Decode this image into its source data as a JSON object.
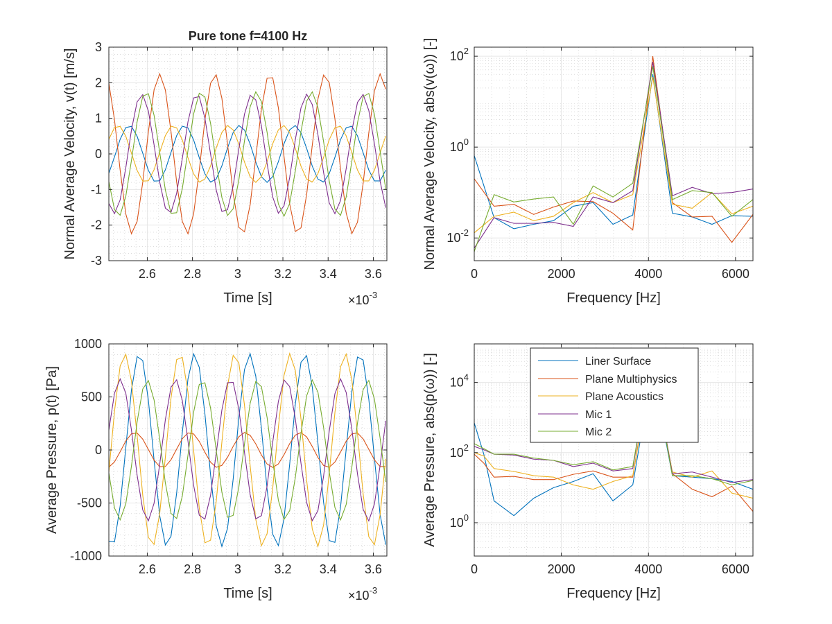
{
  "colors": {
    "series": [
      "#0072BD",
      "#D95319",
      "#EDB120",
      "#7E2F8E",
      "#77AC30"
    ],
    "axis": "#262626",
    "grid": "#e6e6e6",
    "minor_grid": "#c8c8c8"
  },
  "legend": {
    "entries": [
      "Liner Surface",
      "Plane Multiphysics",
      "Plane Acoustics",
      "Mic 1",
      "Mic 2"
    ]
  },
  "chart_data": [
    {
      "id": "velocity-time",
      "type": "line",
      "title": "Pure tone f=4100 Hz",
      "xlabel": "Time [s]",
      "ylabel": "Normal Average Velocity, v(t) [m/s]",
      "x_exponent_label": "×10",
      "x_exponent": "-3",
      "xlim": [
        2.43,
        3.66
      ],
      "ylim": [
        -3,
        3
      ],
      "xscale": "linear",
      "yscale": "linear",
      "xticks": [
        2.6,
        2.8,
        3.0,
        3.2,
        3.4,
        3.6
      ],
      "xtick_labels": [
        "2.6",
        "2.8",
        "3",
        "3.2",
        "3.4",
        "3.6"
      ],
      "yticks": [
        -3,
        -2,
        -1,
        0,
        1,
        2,
        3
      ],
      "ytick_labels": [
        "-3",
        "-2",
        "-1",
        "0",
        "1",
        "2",
        "3"
      ],
      "grid": true,
      "minor_grid": true,
      "signal": {
        "frequency_kHz": 4.1,
        "dt_ms": 0.025,
        "t_start_ms": 2.43,
        "t_end_ms": 3.66,
        "series": [
          {
            "name": "Liner Surface",
            "amplitude": 0.8,
            "peak_at_ms": 2.52
          },
          {
            "name": "Plane Multiphysics",
            "amplitude": 2.25,
            "peak_at_ms": 2.655
          },
          {
            "name": "Plane Acoustics",
            "amplitude": 0.8,
            "peak_at_ms": 2.47
          },
          {
            "name": "Mic 1",
            "amplitude": 1.68,
            "peak_at_ms": 2.575
          },
          {
            "name": "Mic 2",
            "amplitude": 1.75,
            "peak_at_ms": 2.595
          }
        ]
      }
    },
    {
      "id": "velocity-spectrum",
      "type": "line",
      "title": "",
      "xlabel": "Frequency [Hz]",
      "ylabel": "Normal Average Velocity, abs(v(ω)) [-]",
      "xlim": [
        0,
        6400
      ],
      "ylim_log10": [
        -2.5,
        2.2
      ],
      "xscale": "linear",
      "yscale": "log",
      "xticks": [
        0,
        2000,
        4000,
        6000
      ],
      "xtick_labels": [
        "0",
        "2000",
        "4000",
        "6000"
      ],
      "yticks_log10": [
        -2,
        0,
        2
      ],
      "ytick_bases": [
        "10",
        "10",
        "10"
      ],
      "ytick_exponents": [
        "-2",
        "0",
        "2"
      ],
      "grid": true,
      "minor_grid": true,
      "x": [
        0,
        455,
        910,
        1365,
        1820,
        2275,
        2730,
        3185,
        3640,
        4100,
        4550,
        5005,
        5460,
        5915,
        6400
      ],
      "series": [
        {
          "name": "Liner Surface",
          "values": [
            0.65,
            0.028,
            0.016,
            0.02,
            0.024,
            0.05,
            0.06,
            0.02,
            0.032,
            40,
            0.035,
            0.029,
            0.02,
            0.031,
            0.03
          ]
        },
        {
          "name": "Plane Multiphysics",
          "values": [
            0.2,
            0.05,
            0.055,
            0.033,
            0.048,
            0.065,
            0.063,
            0.035,
            0.015,
            100,
            0.06,
            0.029,
            0.03,
            0.008,
            0.033
          ]
        },
        {
          "name": "Plane Acoustics",
          "values": [
            0.013,
            0.03,
            0.037,
            0.024,
            0.03,
            0.06,
            0.1,
            0.06,
            0.09,
            35,
            0.055,
            0.045,
            0.1,
            0.034,
            0.05
          ]
        },
        {
          "name": "Mic 1",
          "values": [
            0.006,
            0.028,
            0.021,
            0.021,
            0.022,
            0.018,
            0.08,
            0.06,
            0.11,
            75,
            0.085,
            0.13,
            0.095,
            0.1,
            0.12
          ]
        },
        {
          "name": "Mic 2",
          "values": [
            0.005,
            0.09,
            0.062,
            0.072,
            0.08,
            0.02,
            0.14,
            0.08,
            0.16,
            60,
            0.07,
            0.11,
            0.1,
            0.03,
            0.07
          ]
        }
      ]
    },
    {
      "id": "pressure-time",
      "type": "line",
      "title": "",
      "xlabel": "Time [s]",
      "ylabel": "Average Pressure, p(t) [Pa]",
      "x_exponent_label": "×10",
      "x_exponent": "-3",
      "xlim": [
        2.43,
        3.66
      ],
      "ylim": [
        -1000,
        1000
      ],
      "xscale": "linear",
      "yscale": "linear",
      "xticks": [
        2.6,
        2.8,
        3.0,
        3.2,
        3.4,
        3.6
      ],
      "xtick_labels": [
        "2.6",
        "2.8",
        "3",
        "3.2",
        "3.4",
        "3.6"
      ],
      "yticks": [
        -1000,
        -500,
        0,
        500,
        1000
      ],
      "ytick_labels": [
        "-1000",
        "-500",
        "0",
        "500",
        "1000"
      ],
      "grid": true,
      "minor_grid": true,
      "signal": {
        "frequency_kHz": 4.1,
        "dt_ms": 0.025,
        "t_start_ms": 2.43,
        "t_end_ms": 3.66,
        "series": [
          {
            "name": "Liner Surface",
            "amplitude": 910,
            "peak_at_ms": 2.565
          },
          {
            "name": "Plane Multiphysics",
            "amplitude": 165,
            "peak_at_ms": 2.545
          },
          {
            "name": "Plane Acoustics",
            "amplitude": 910,
            "peak_at_ms": 2.5
          },
          {
            "name": "Mic 1",
            "amplitude": 670,
            "peak_at_ms": 2.48
          },
          {
            "name": "Mic 2",
            "amplitude": 660,
            "peak_at_ms": 2.6
          }
        ]
      }
    },
    {
      "id": "pressure-spectrum",
      "type": "line",
      "title": "",
      "xlabel": "Frequency [Hz]",
      "ylabel": "Average Pressure, abs(p(ω)) [-]",
      "xlim": [
        0,
        6400
      ],
      "ylim_log10": [
        -0.95,
        5.1
      ],
      "xscale": "linear",
      "yscale": "log",
      "xticks": [
        0,
        2000,
        4000,
        6000
      ],
      "xtick_labels": [
        "0",
        "2000",
        "4000",
        "6000"
      ],
      "yticks_log10": [
        0,
        2,
        4
      ],
      "ytick_bases": [
        "10",
        "10",
        "10"
      ],
      "ytick_exponents": [
        "0",
        "2",
        "4"
      ],
      "grid": true,
      "minor_grid": true,
      "legend_position": "top",
      "x": [
        0,
        220,
        455,
        910,
        1365,
        1820,
        2275,
        2730,
        3185,
        3640,
        3900,
        4100,
        4550,
        5005,
        5460,
        5915,
        6400
      ],
      "series": [
        {
          "name": "Liner Surface",
          "values": [
            700,
            90,
            4.2,
            1.6,
            5,
            10,
            15,
            25,
            4.2,
            12,
            1000,
            20000,
            22,
            20,
            18,
            15,
            9
          ]
        },
        {
          "name": "Plane Multiphysics",
          "values": [
            90,
            50,
            20,
            21,
            17,
            17,
            24,
            30,
            20,
            20,
            2000,
            30000,
            25,
            9,
            5.5,
            11,
            2.1
          ]
        },
        {
          "name": "Plane Acoustics",
          "values": [
            100,
            80,
            35,
            29,
            22,
            20,
            12,
            9,
            15,
            22,
            1500,
            25000,
            28,
            20,
            30,
            7,
            5
          ]
        },
        {
          "name": "Mic 1",
          "values": [
            150,
            120,
            90,
            85,
            65,
            60,
            40,
            50,
            30,
            35,
            3000,
            30000,
            25,
            28,
            20,
            14,
            17
          ]
        },
        {
          "name": "Mic 2",
          "values": [
            180,
            130,
            90,
            90,
            70,
            60,
            45,
            55,
            32,
            40,
            3000,
            30000,
            22,
            22,
            18,
            12,
            16
          ]
        }
      ]
    }
  ]
}
